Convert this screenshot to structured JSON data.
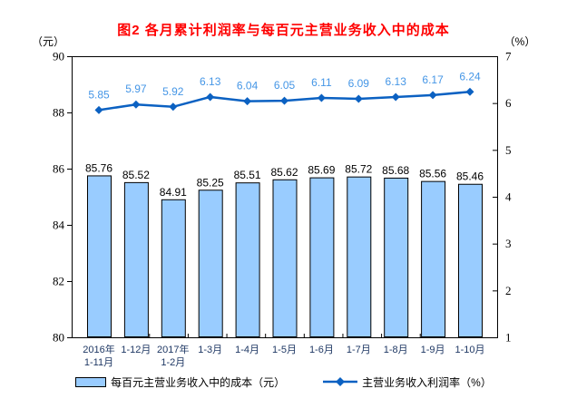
{
  "chart_data": {
    "type": "bar+line",
    "title": "图2 各月累计利润率与每百元主营业务收入中的成本",
    "title_color": "#FF0000",
    "categories": [
      "2016年\n1-11月",
      "1-12月",
      "2017年\n1-2月",
      "1-3月",
      "1-4月",
      "1-5月",
      "1-6月",
      "1-7月",
      "1-8月",
      "1-9月",
      "1-10月"
    ],
    "left_axis": {
      "unit": "（元）",
      "min": 80,
      "max": 90,
      "step": 2
    },
    "right_axis": {
      "unit": "（%）",
      "min": 1,
      "max": 7,
      "step": 1
    },
    "series": [
      {
        "name": "每百元主营业务收入中的成本（元）",
        "type": "bar",
        "axis": "left",
        "values": [
          85.76,
          85.52,
          84.91,
          85.25,
          85.51,
          85.62,
          85.69,
          85.72,
          85.68,
          85.56,
          85.46
        ],
        "fill": "#99CCFF",
        "stroke": "#000000",
        "label_color": "#000000"
      },
      {
        "name": "主营业务收入利润率（%）",
        "type": "line",
        "axis": "right",
        "values": [
          5.85,
          5.97,
          5.92,
          6.13,
          6.04,
          6.05,
          6.11,
          6.09,
          6.13,
          6.17,
          6.24
        ],
        "color": "#0B61C2",
        "label_color": "#4596E6"
      }
    ],
    "legend_position": "bottom",
    "grid": false,
    "axis_label_color": "#1F3864",
    "tick_label_color": "#000000"
  }
}
